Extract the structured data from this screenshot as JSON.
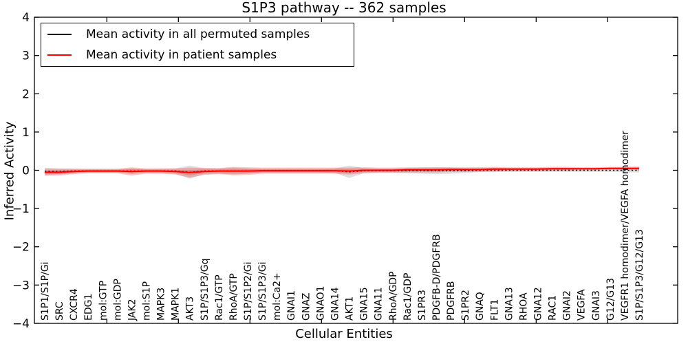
{
  "chart_data": {
    "type": "line",
    "title": "S1P3 pathway -- 362 samples",
    "xlabel": "Cellular Entities",
    "ylabel": "Inferred Activity",
    "ylim": [
      -4,
      4
    ],
    "ytick_values": [
      4,
      3,
      2,
      1,
      0,
      -1,
      -2,
      -3,
      -4
    ],
    "ytick_labels": [
      "4",
      "3",
      "2",
      "1",
      "0",
      "−1",
      "−2",
      "−3",
      "−4"
    ],
    "grid": false,
    "legend_position": "upper left",
    "categories": [
      "S1P1/S1P/Gi",
      "SRC",
      "CXCR4",
      "EDG1",
      "mol:GTP",
      "mol:GDP",
      "JAK2",
      "mol:S1P",
      "MAPK3",
      "MAPK1",
      "AKT3",
      "S1P/S1P3/Gq",
      "Rac1/GTP",
      "RhoA/GTP",
      "S1P/S1P2/Gi",
      "S1P/S1P3/Gi",
      "mol:Ca2+",
      "GNAI1",
      "GNAZ",
      "GNAO1",
      "GNA14",
      "AKT1",
      "GNA15",
      "GNA11",
      "RhoA/GDP",
      "Rac1/GDP",
      "S1PR3",
      "PDGFB-D/PDGFRB",
      "PDGFRB",
      "S1PR2",
      "GNAQ",
      "FLT1",
      "GNA13",
      "RHOA",
      "GNA12",
      "RAC1",
      "GNAI2",
      "VEGFA",
      "GNAI3",
      "G12/G13",
      "VEGFR1 homodimer/VEGFA homodimer",
      "S1P/S1P3/G12/G13"
    ],
    "series": [
      {
        "name": "Mean activity in all permuted samples",
        "color": "#000000",
        "band_color": "rgba(0,0,0,0.13)",
        "line_style": "dotted",
        "core_band": false,
        "values": [
          -0.03,
          -0.03,
          -0.02,
          -0.02,
          -0.02,
          -0.02,
          -0.02,
          -0.02,
          -0.02,
          -0.02,
          -0.05,
          -0.02,
          -0.02,
          -0.02,
          -0.02,
          -0.01,
          -0.01,
          -0.01,
          -0.01,
          -0.01,
          -0.01,
          -0.04,
          -0.01,
          -0.01,
          -0.01,
          -0.01,
          -0.01,
          -0.01,
          -0.01,
          -0.01,
          0,
          0,
          0,
          0,
          0,
          0,
          0,
          0,
          0,
          0,
          0,
          0
        ],
        "band": [
          0.1,
          0.08,
          0.06,
          0.05,
          0.05,
          0.05,
          0.07,
          0.05,
          0.06,
          0.07,
          0.17,
          0.08,
          0.07,
          0.09,
          0.07,
          0.05,
          0.05,
          0.05,
          0.05,
          0.05,
          0.06,
          0.16,
          0.07,
          0.05,
          0.05,
          0.07,
          0.08,
          0.09,
          0.08,
          0.06,
          0.05,
          0.05,
          0.04,
          0.04,
          0.04,
          0.04,
          0.04,
          0.04,
          0.04,
          0.04,
          0.05,
          0.06
        ]
      },
      {
        "name": "Mean activity in patient samples",
        "color": "#ff0000",
        "band_color": "rgba(255,0,0,0.22)",
        "line_style": "solid",
        "core_band": true,
        "values": [
          -0.05,
          -0.05,
          -0.03,
          -0.02,
          -0.02,
          -0.02,
          -0.03,
          -0.02,
          -0.02,
          -0.03,
          -0.06,
          -0.03,
          -0.02,
          -0.02,
          -0.02,
          -0.01,
          -0.01,
          -0.01,
          -0.01,
          -0.01,
          -0.01,
          -0.02,
          0,
          0,
          0,
          0.01,
          0.01,
          0.01,
          0.02,
          0.02,
          0.02,
          0.03,
          0.03,
          0.03,
          0.03,
          0.04,
          0.04,
          0.04,
          0.04,
          0.05,
          0.05,
          0.05
        ],
        "band": [
          0.09,
          0.09,
          0.07,
          0.06,
          0.06,
          0.06,
          0.11,
          0.07,
          0.07,
          0.08,
          0.13,
          0.09,
          0.08,
          0.11,
          0.1,
          0.08,
          0.08,
          0.08,
          0.08,
          0.08,
          0.08,
          0.09,
          0.08,
          0.07,
          0.07,
          0.07,
          0.07,
          0.07,
          0.06,
          0.06,
          0.06,
          0.06,
          0.05,
          0.05,
          0.05,
          0.05,
          0.05,
          0.04,
          0.04,
          0.04,
          0.04,
          0.05
        ]
      }
    ]
  }
}
